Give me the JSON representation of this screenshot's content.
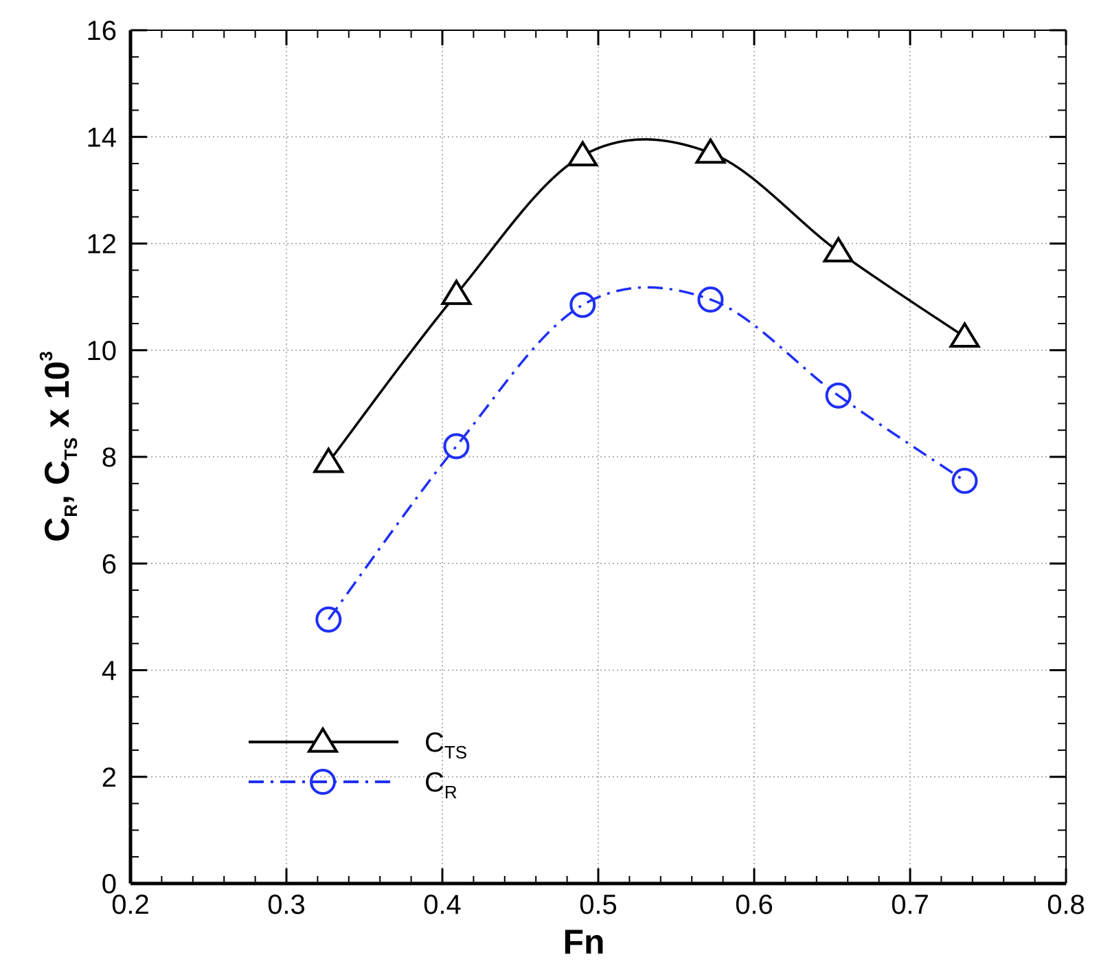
{
  "chart_data": {
    "type": "line",
    "xlabel": "Fn",
    "ylabel": {
      "base": "C",
      "sub1": "R",
      "sep": ", ",
      "base2": "C",
      "sub2": "TS",
      "suffix": " x 10",
      "sup": "3"
    },
    "xlim": [
      0.2,
      0.8
    ],
    "ylim": [
      0,
      16
    ],
    "x_ticks": [
      "0.2",
      "0.3",
      "0.4",
      "0.5",
      "0.6",
      "0.7",
      "0.8"
    ],
    "y_ticks": [
      "0",
      "2",
      "4",
      "6",
      "8",
      "10",
      "12",
      "14",
      "16"
    ],
    "grid": true,
    "legend_position": "lower-left",
    "series": [
      {
        "name": {
          "base": "C",
          "sub": "TS"
        },
        "marker": "triangle",
        "line": "solid",
        "color": "#000000",
        "x": [
          0.327,
          0.409,
          0.49,
          0.572,
          0.654,
          0.735
        ],
        "y": [
          7.9,
          11.05,
          13.65,
          13.7,
          11.85,
          10.25
        ]
      },
      {
        "name": {
          "base": "C",
          "sub": "R"
        },
        "marker": "circle",
        "line": "dash-dot",
        "color": "#1f2ff5",
        "x": [
          0.327,
          0.409,
          0.49,
          0.572,
          0.654,
          0.735
        ],
        "y": [
          4.95,
          8.2,
          10.85,
          10.95,
          9.15,
          7.55
        ]
      }
    ]
  }
}
